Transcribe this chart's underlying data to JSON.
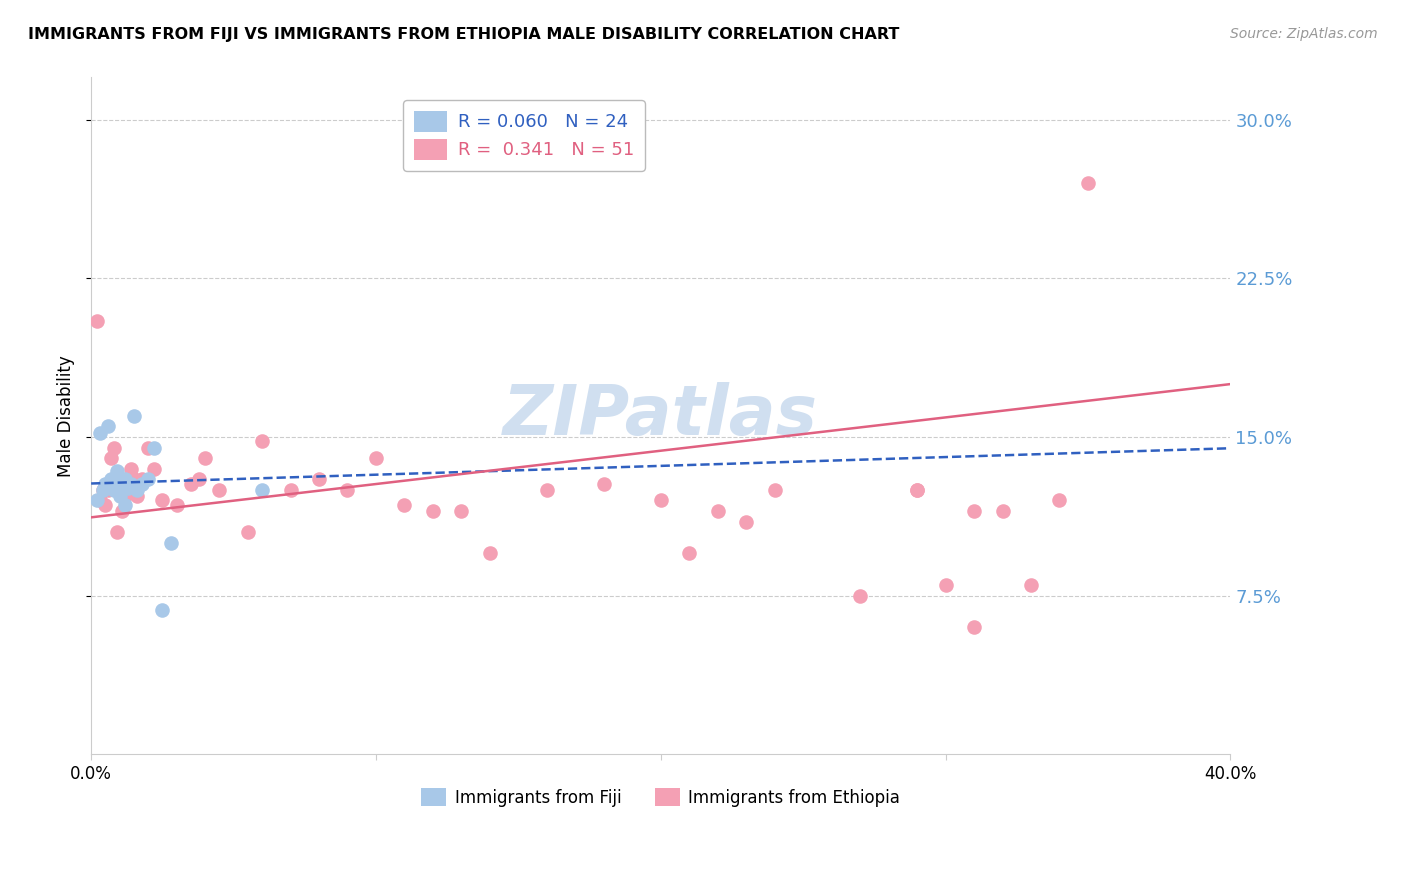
{
  "title": "IMMIGRANTS FROM FIJI VS IMMIGRANTS FROM ETHIOPIA MALE DISABILITY CORRELATION CHART",
  "source": "Source: ZipAtlas.com",
  "ylabel": "Male Disability",
  "xlim": [
    0.0,
    0.4
  ],
  "ylim": [
    0.0,
    0.32
  ],
  "yticks": [
    0.075,
    0.15,
    0.225,
    0.3
  ],
  "ytick_labels": [
    "7.5%",
    "15.0%",
    "22.5%",
    "30.0%"
  ],
  "xticks": [
    0.0,
    0.1,
    0.2,
    0.3,
    0.4
  ],
  "xtick_labels": [
    "0.0%",
    "",
    "",
    "",
    "40.0%"
  ],
  "fiji_R": 0.06,
  "fiji_N": 24,
  "ethiopia_R": 0.341,
  "ethiopia_N": 51,
  "fiji_color": "#a8c8e8",
  "ethiopia_color": "#f4a0b4",
  "fiji_line_color": "#3060c0",
  "ethiopia_line_color": "#e06080",
  "watermark": "ZIPatlas",
  "watermark_color": "#d0dff0",
  "fiji_line_x0": 0.0,
  "fiji_line_y0": 0.128,
  "fiji_line_x1": 0.12,
  "fiji_line_y1": 0.133,
  "ethiopia_line_x0": 0.0,
  "ethiopia_line_y0": 0.112,
  "ethiopia_line_x1": 0.4,
  "ethiopia_line_y1": 0.175,
  "fiji_x": [
    0.002,
    0.003,
    0.004,
    0.005,
    0.006,
    0.007,
    0.008,
    0.009,
    0.01,
    0.011,
    0.012,
    0.013,
    0.014,
    0.015,
    0.016,
    0.018,
    0.02,
    0.022,
    0.025,
    0.028,
    0.06,
    0.01,
    0.008,
    0.012
  ],
  "fiji_y": [
    0.12,
    0.152,
    0.125,
    0.128,
    0.155,
    0.13,
    0.126,
    0.134,
    0.128,
    0.125,
    0.13,
    0.126,
    0.128,
    0.16,
    0.125,
    0.128,
    0.13,
    0.145,
    0.068,
    0.1,
    0.125,
    0.122,
    0.125,
    0.118
  ],
  "ethiopia_x": [
    0.002,
    0.003,
    0.004,
    0.005,
    0.006,
    0.007,
    0.008,
    0.009,
    0.01,
    0.011,
    0.012,
    0.013,
    0.014,
    0.015,
    0.016,
    0.018,
    0.02,
    0.022,
    0.025,
    0.03,
    0.035,
    0.038,
    0.04,
    0.045,
    0.055,
    0.06,
    0.07,
    0.08,
    0.09,
    0.1,
    0.11,
    0.12,
    0.13,
    0.14,
    0.16,
    0.18,
    0.2,
    0.21,
    0.22,
    0.23,
    0.24,
    0.29,
    0.3,
    0.31,
    0.32,
    0.33,
    0.34,
    0.35,
    0.31,
    0.29,
    0.27
  ],
  "ethiopia_y": [
    0.205,
    0.12,
    0.125,
    0.118,
    0.125,
    0.14,
    0.145,
    0.105,
    0.13,
    0.115,
    0.122,
    0.125,
    0.135,
    0.13,
    0.122,
    0.13,
    0.145,
    0.135,
    0.12,
    0.118,
    0.128,
    0.13,
    0.14,
    0.125,
    0.105,
    0.148,
    0.125,
    0.13,
    0.125,
    0.14,
    0.118,
    0.115,
    0.115,
    0.095,
    0.125,
    0.128,
    0.12,
    0.095,
    0.115,
    0.11,
    0.125,
    0.125,
    0.08,
    0.115,
    0.115,
    0.08,
    0.12,
    0.27,
    0.06,
    0.125,
    0.075
  ]
}
